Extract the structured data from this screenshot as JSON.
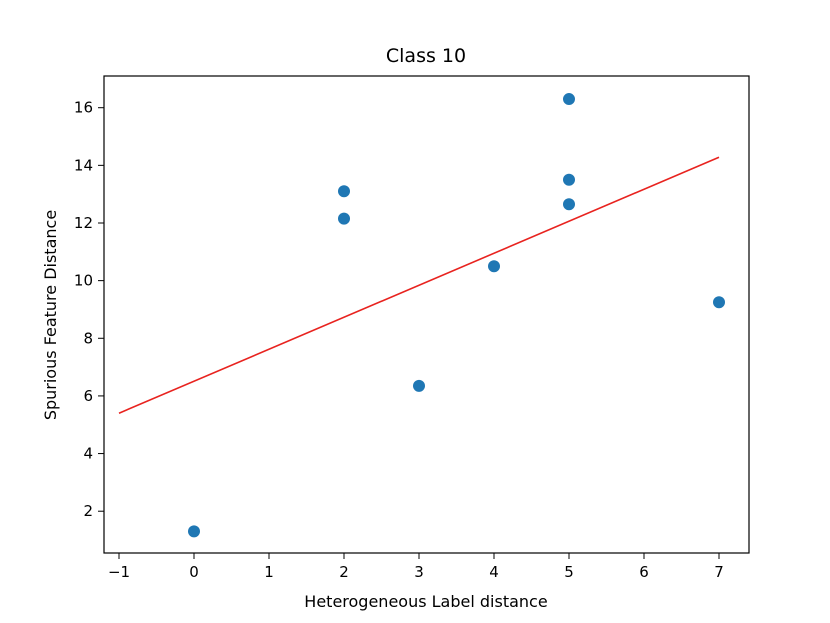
{
  "chart_data": {
    "type": "scatter",
    "title": "Class 10",
    "xlabel": "Heterogeneous Label distance",
    "ylabel": "Spurious Feature Distance",
    "xlim": [
      -1.2,
      7.4
    ],
    "ylim": [
      0.55,
      17.1
    ],
    "xticks": [
      -1,
      0,
      1,
      2,
      3,
      4,
      5,
      6,
      7
    ],
    "yticks": [
      2,
      4,
      6,
      8,
      10,
      12,
      14,
      16
    ],
    "xtick_labels": [
      "−1",
      "0",
      "1",
      "2",
      "3",
      "4",
      "5",
      "6",
      "7"
    ],
    "ytick_labels": [
      "2",
      "4",
      "6",
      "8",
      "10",
      "12",
      "14",
      "16"
    ],
    "grid": false,
    "colors": {
      "points": "#1f77b4",
      "fit_line": "#e8231f"
    },
    "points": [
      {
        "x": 0,
        "y": 1.3
      },
      {
        "x": 2,
        "y": 13.1
      },
      {
        "x": 2,
        "y": 12.15
      },
      {
        "x": 3,
        "y": 6.35
      },
      {
        "x": 4,
        "y": 10.5
      },
      {
        "x": 5,
        "y": 16.3
      },
      {
        "x": 5,
        "y": 13.5
      },
      {
        "x": 5,
        "y": 12.65
      },
      {
        "x": 7,
        "y": 9.25
      }
    ],
    "fit_line": {
      "x": [
        -1,
        7
      ],
      "y": [
        5.4,
        14.28
      ]
    }
  }
}
